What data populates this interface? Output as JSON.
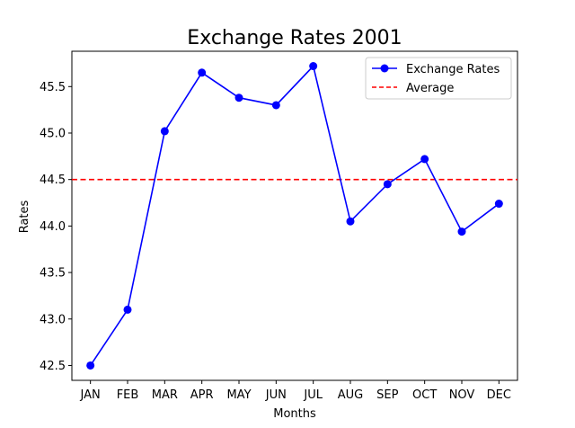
{
  "chart_data": {
    "type": "line",
    "title": "Exchange Rates 2001",
    "xlabel": "Months",
    "ylabel": "Rates",
    "categories": [
      "JAN",
      "FEB",
      "MAR",
      "APR",
      "MAY",
      "JUN",
      "JUL",
      "AUG",
      "SEP",
      "OCT",
      "NOV",
      "DEC"
    ],
    "series": [
      {
        "name": "Exchange Rates",
        "values": [
          42.5,
          43.1,
          45.02,
          45.65,
          45.38,
          45.3,
          45.72,
          44.05,
          44.45,
          44.72,
          43.94,
          44.24
        ],
        "color": "#0000ff",
        "marker": "circle"
      }
    ],
    "average": {
      "name": "Average",
      "value": 44.5,
      "color": "#ff0000",
      "style": "dashed"
    },
    "yticks": [
      "42.5",
      "43.0",
      "43.5",
      "44.0",
      "44.5",
      "45.0",
      "45.5"
    ],
    "ylim": [
      42.34,
      45.88
    ],
    "grid": false,
    "legend_position": "upper right"
  }
}
